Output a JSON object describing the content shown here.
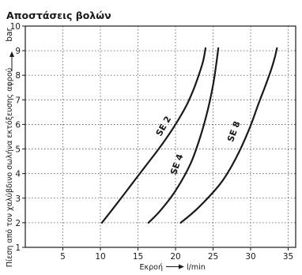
{
  "chart_data": {
    "type": "line",
    "title": "Αποστάσεις βολών",
    "xlabel": "Εκροή",
    "xunit": "l/min",
    "ylabel": "Πίεση από τον χαλύβδινο σωλήνα εκτόξευσης αφρού",
    "yunit": "bar",
    "xlim": [
      0,
      36
    ],
    "ylim": [
      1,
      10
    ],
    "xticks": [
      5,
      10,
      15,
      20,
      25,
      30,
      35
    ],
    "yticks": [
      1,
      2,
      3,
      4,
      5,
      6,
      7,
      8,
      9,
      10
    ],
    "grid": true,
    "series": [
      {
        "name": "SE 2",
        "x": [
          10.2,
          12,
          14,
          16,
          18,
          20,
          21.5,
          22.5,
          23.2,
          23.7,
          24.0
        ],
        "y": [
          2.0,
          2.7,
          3.5,
          4.3,
          5.1,
          6.0,
          6.8,
          7.5,
          8.1,
          8.6,
          9.1
        ]
      },
      {
        "name": "SE 4",
        "x": [
          16.4,
          18,
          20,
          22,
          23.3,
          24.3,
          25.0,
          25.4,
          25.7
        ],
        "y": [
          2.0,
          2.5,
          3.3,
          4.4,
          5.5,
          6.6,
          7.6,
          8.4,
          9.1
        ]
      },
      {
        "name": "SE 8",
        "x": [
          20.7,
          23,
          26,
          28,
          29.8,
          31.0,
          32.0,
          32.7,
          33.2,
          33.5
        ],
        "y": [
          2.0,
          2.6,
          3.6,
          4.6,
          5.8,
          6.8,
          7.6,
          8.2,
          8.7,
          9.1
        ]
      }
    ]
  }
}
